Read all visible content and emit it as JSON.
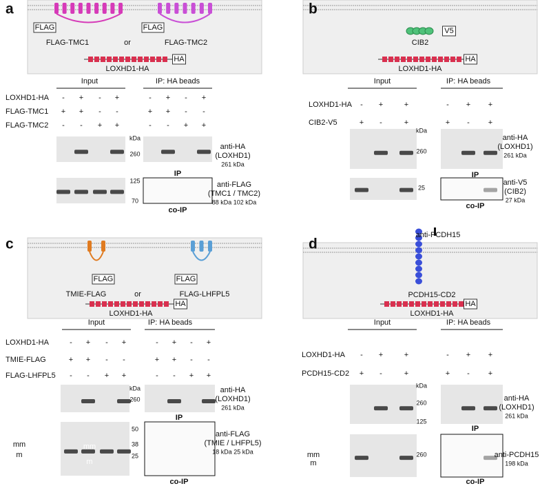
{
  "panels": [
    {
      "letter": "a",
      "schematic": [
        "FLAG",
        "FLAG-TMC1",
        "or",
        "FLAG",
        "FLAG-TMC2",
        "LOXHD1-HA",
        "HA"
      ],
      "groups": [
        "Input",
        "IP: HA beads"
      ],
      "rows": [
        {
          "label": "LOXHD1-HA",
          "signs": [
            "-",
            "+",
            "-",
            "+",
            "-",
            "+",
            "-",
            "+"
          ]
        },
        {
          "label": "FLAG-TMC1",
          "signs": [
            "+",
            "+",
            "-",
            "-",
            "+",
            "+",
            "-",
            "-"
          ]
        },
        {
          "label": "FLAG-TMC2",
          "signs": [
            "-",
            "-",
            "+",
            "+",
            "-",
            "-",
            "+",
            "+"
          ]
        }
      ],
      "blots": [
        {
          "markers": [
            "kDa",
            "260"
          ],
          "antibody": [
            "anti-HA",
            "(LOXHD1)",
            "261 kDa"
          ],
          "caption": "IP"
        },
        {
          "markers": [
            "125",
            "70"
          ],
          "antibody": [
            "anti-FLAG",
            "(TMC1 / TMC2)",
            "88 kDa  102 kDa"
          ],
          "caption": "co-IP"
        }
      ]
    },
    {
      "letter": "b",
      "schematic": [
        "V5",
        "CIB2",
        "LOXHD1-HA",
        "HA"
      ],
      "groups": [
        "Input",
        "IP: HA beads"
      ],
      "rows": [
        {
          "label": "LOXHD1-HA",
          "signs": [
            "-",
            "+",
            "+",
            "-",
            "+",
            "+"
          ]
        },
        {
          "label": "CIB2-V5",
          "signs": [
            "+",
            "-",
            "+",
            "+",
            "-",
            "+"
          ]
        }
      ],
      "blots": [
        {
          "markers": [
            "kDa",
            "260"
          ],
          "antibody": [
            "anti-HA",
            "(LOXHD1)",
            "261 kDa"
          ],
          "caption": "IP"
        },
        {
          "markers": [
            "25"
          ],
          "antibody": [
            "anti-V5",
            "(CIB2)",
            "27 kDa"
          ],
          "caption": "co-IP"
        }
      ]
    },
    {
      "letter": "c",
      "schematic": [
        "FLAG",
        "TMIE-FLAG",
        "or",
        "FLAG",
        "FLAG-LHFPL5",
        "LOXHD1-HA",
        "HA"
      ],
      "groups": [
        "Input",
        "IP: HA beads"
      ],
      "rows": [
        {
          "label": "LOXHD1-HA",
          "signs": [
            "-",
            "+",
            "-",
            "+",
            "-",
            "+",
            "-",
            "+"
          ]
        },
        {
          "label": "TMIE-FLAG",
          "signs": [
            "+",
            "+",
            "-",
            "-",
            "+",
            "+",
            "-",
            "-"
          ]
        },
        {
          "label": "FLAG-LHFPL5",
          "signs": [
            "-",
            "-",
            "+",
            "+",
            "-",
            "-",
            "+",
            "+"
          ]
        }
      ],
      "blots": [
        {
          "markers": [
            "kDa",
            "260"
          ],
          "antibody": [
            "anti-HA",
            "(LOXHD1)",
            "261 kDa"
          ],
          "caption": "IP"
        },
        {
          "markers": [
            "50",
            "38",
            "25"
          ],
          "side": [
            "mm",
            "m",
            "mm",
            "m"
          ],
          "antibody": [
            "anti-FLAG",
            "(TMIE / LHFPL5)",
            "18 kDa    25 kDa"
          ],
          "caption": "co-IP"
        }
      ]
    },
    {
      "letter": "d",
      "schematic": [
        "anti-PCDH15",
        "PCDH15-CD2",
        "LOXHD1-HA",
        "HA"
      ],
      "groups": [
        "Input",
        "IP: HA beads"
      ],
      "rows": [
        {
          "label": "LOXHD1-HA",
          "signs": [
            "-",
            "+",
            "+",
            "-",
            "+",
            "+"
          ]
        },
        {
          "label": "PCDH15-CD2",
          "signs": [
            "+",
            "-",
            "+",
            "+",
            "-",
            "+"
          ]
        }
      ],
      "blots": [
        {
          "markers": [
            "kDa",
            "260",
            "125"
          ],
          "antibody": [
            "anti-HA",
            "(LOXHD1)",
            "261 kDa"
          ],
          "caption": "IP"
        },
        {
          "markers": [
            "260"
          ],
          "side": [
            "mm",
            "m"
          ],
          "antibody": [
            "anti-PCDH15",
            "198 kDa"
          ],
          "caption": "co-IP"
        }
      ]
    }
  ]
}
